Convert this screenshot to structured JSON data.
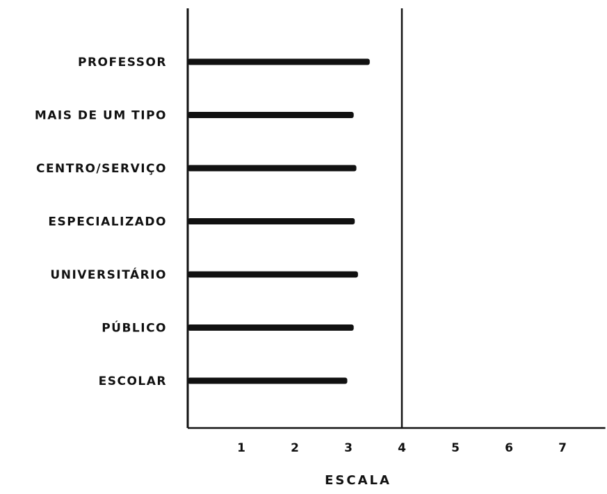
{
  "chart_data": {
    "type": "bar",
    "orientation": "horizontal",
    "categories": [
      "PROFESSOR",
      "MAIS DE UM TIPO",
      "CENTRO/SERVIÇO",
      "ESPECIALIZADO",
      "UNIVERSITÁRIO",
      "PÚBLICO",
      "ESCOLAR"
    ],
    "values": [
      3.4,
      3.1,
      3.15,
      3.12,
      3.18,
      3.1,
      2.98
    ],
    "xlabel": "ESCALA",
    "ylabel": "",
    "xlim": [
      0,
      7.8
    ],
    "xticks": [
      "1",
      "2",
      "3",
      "4",
      "5",
      "6",
      "7"
    ],
    "reference_line": 4,
    "grid": false,
    "bar_color": "#111111"
  }
}
